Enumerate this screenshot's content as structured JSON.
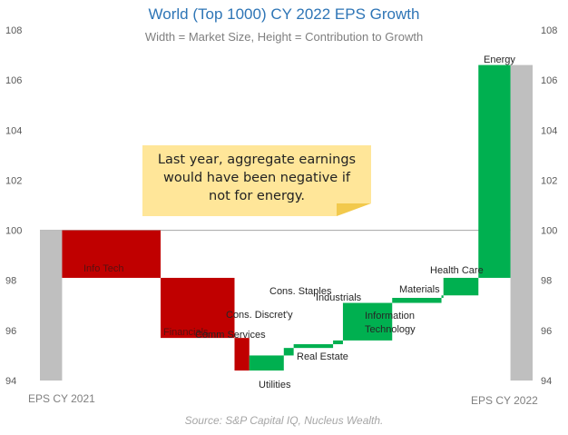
{
  "title": "World (Top 1000) CY 2022 EPS Growth",
  "subtitle": "Width = Market Size, Height = Contribution to Growth",
  "source": "Source: S&P Capital IQ, Nucleus Wealth.",
  "annotation": "Last year, aggregate earnings\nwould have been negative if\nnot for energy.",
  "colors": {
    "negative": "#c00000",
    "positive": "#00b050",
    "total": "#bfbfbf",
    "title": "#2e75b6"
  },
  "chart_data": {
    "type": "bar",
    "subtype": "variable-width waterfall (marimekko)",
    "ylim": [
      94,
      108
    ],
    "yticks": [
      94,
      96,
      98,
      100,
      102,
      104,
      106,
      108
    ],
    "grid": false,
    "reference_line": 100,
    "x_range": [
      0,
      100
    ],
    "totals": [
      {
        "name": "EPS CY 2021",
        "value": 100,
        "x0": 0,
        "x1": 4.5
      },
      {
        "name": "EPS CY 2022",
        "value": 106.6,
        "x0": 95.5,
        "x1": 100
      }
    ],
    "sectors": [
      {
        "name": "Info Tech",
        "base": 100,
        "change": -1.9,
        "x0": 4.5,
        "x1": 24.5
      },
      {
        "name": "Financials",
        "base": 98.1,
        "change": -2.4,
        "x0": 24.5,
        "x1": 39.5
      },
      {
        "name": "Comm Services",
        "base": 95.7,
        "change": -1.3,
        "x0": 39.5,
        "x1": 42.5
      },
      {
        "name": "Utilities",
        "base": 94.4,
        "change": 0.6,
        "x0": 42.5,
        "x1": 49.5
      },
      {
        "name": "Cons. Discret'y",
        "base": 95.0,
        "change": 0.3,
        "x0": 49.5,
        "x1": 51.5
      },
      {
        "name": "Real Estate",
        "base": 95.3,
        "change": 0.15,
        "x0": 51.5,
        "x1": 59.5
      },
      {
        "name": "Cons. Staples",
        "base": 95.45,
        "change": 0.15,
        "x0": 59.5,
        "x1": 61.5
      },
      {
        "name": "Industrials",
        "base": 95.6,
        "change": 1.5,
        "x0": 61.5,
        "x1": 71.5
      },
      {
        "name": "Information Technology",
        "base": 97.1,
        "change": 0.2,
        "x0": 71.5,
        "x1": 81.5
      },
      {
        "name": "Materials",
        "base": 97.3,
        "change": 0.1,
        "x0": 81.5,
        "x1": 81.9
      },
      {
        "name": "Health Care",
        "base": 97.4,
        "change": 0.7,
        "x0": 81.9,
        "x1": 89.0
      },
      {
        "name": "Energy",
        "base": 98.1,
        "change": 8.5,
        "x0": 89.0,
        "x1": 95.5
      }
    ]
  }
}
